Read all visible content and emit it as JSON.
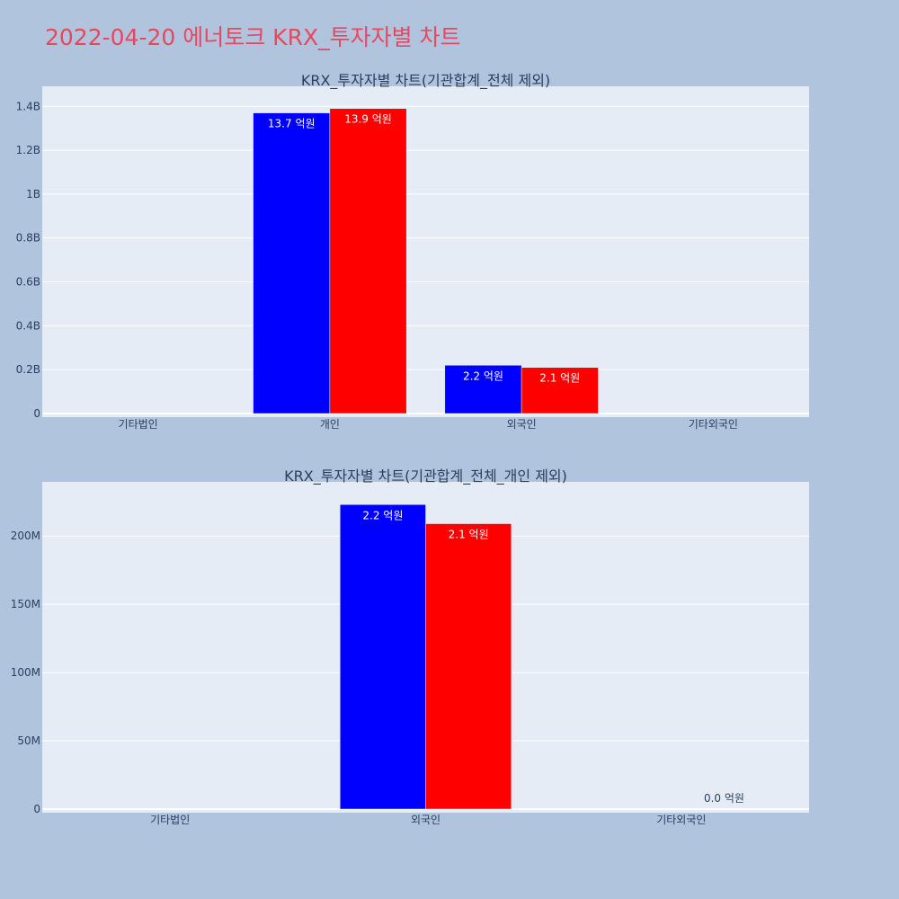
{
  "page": {
    "title": "2022-04-20 에너토크 KRX_투자자별 차트"
  },
  "chart_data": [
    {
      "type": "bar",
      "title": "KRX_투자자별 차트(기관합계_전체 제외)",
      "categories": [
        "기타법인",
        "개인",
        "외국인",
        "기타외국인"
      ],
      "series": [
        {
          "color": "#0000ff",
          "values": [
            0,
            1370000000,
            220000000,
            0
          ],
          "labels": [
            "",
            "13.7 억원",
            "2.2 억원",
            ""
          ]
        },
        {
          "color": "#ff0000",
          "values": [
            0,
            1390000000,
            210000000,
            0
          ],
          "labels": [
            "",
            "13.9 억원",
            "2.1 억원",
            ""
          ]
        }
      ],
      "ylim": [
        0,
        1475000000
      ],
      "yticks": [
        0,
        200000000,
        400000000,
        600000000,
        800000000,
        1000000000,
        1200000000,
        1400000000
      ],
      "ytick_labels": [
        "0",
        "0.2B",
        "0.4B",
        "0.6B",
        "0.8B",
        "1B",
        "1.2B",
        "1.4B"
      ],
      "grid": true,
      "legend": "none"
    },
    {
      "type": "bar",
      "title": "KRX_투자자별 차트(기관합계_전체_개인 제외)",
      "categories": [
        "기타법인",
        "외국인",
        "기타외국인"
      ],
      "series": [
        {
          "color": "#0000ff",
          "values": [
            0,
            223000000,
            0
          ],
          "labels": [
            "",
            "2.2 억원",
            ""
          ]
        },
        {
          "color": "#ff0000",
          "values": [
            0,
            209000000,
            0
          ],
          "labels": [
            "",
            "2.1 억원",
            "0.0 억원"
          ]
        }
      ],
      "ylim": [
        0,
        237000000
      ],
      "yticks": [
        0,
        50000000,
        100000000,
        150000000,
        200000000
      ],
      "ytick_labels": [
        "0",
        "50M",
        "100M",
        "150M",
        "200M"
      ],
      "grid": true,
      "legend": "none"
    }
  ]
}
